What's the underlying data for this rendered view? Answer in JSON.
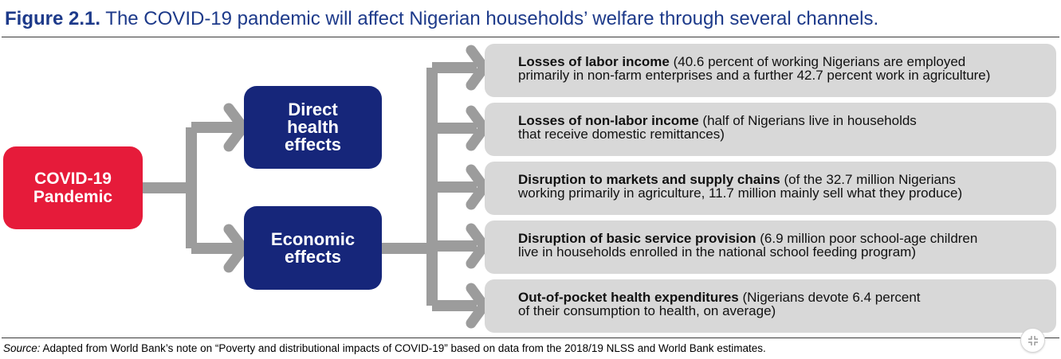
{
  "figure": {
    "number": "Figure 2.1.",
    "title": "The COVID-19 pandemic will affect Nigerian households’ welfare through several channels."
  },
  "diagram": {
    "source_node": "COVID-19\nPandemic",
    "effects": [
      "Direct\nhealth\neffects",
      "Economic\neffects"
    ],
    "channels": [
      {
        "lead": "Losses of labor income",
        "detail": " (40.6 percent of working Nigerians are employed\nprimarily in non-farm enterprises and a further 42.7 percent work in agriculture)"
      },
      {
        "lead": "Losses of non-labor income",
        "detail": " (half of Nigerians live in households\nthat receive domestic remittances)"
      },
      {
        "lead": "Disruption to markets and supply chains",
        "detail": " (of the 32.7 million Nigerians\nworking primarily in agriculture, 11.7 million mainly sell what they produce)"
      },
      {
        "lead": "Disruption of basic service provision",
        "detail": " (6.9 million poor school-age children\nlive in households enrolled in the national school feeding program)"
      },
      {
        "lead": "Out-of-pocket health expenditures",
        "detail": " (Nigerians devote 6.4 percent\nof their consumption to health, on average)"
      }
    ]
  },
  "source": {
    "label": "Source:",
    "text": " Adapted from World Bank’s note on “Poverty and distributional impacts of COVID-19” based on data from the 2018/19 NLSS and World Bank estimates."
  },
  "controls": {
    "collapse_icon": "collapse-icon"
  },
  "colors": {
    "title_blue": "#1d3a8a",
    "covid_red": "#e61b3a",
    "effect_navy": "#16267a",
    "arrow_gray": "#9c9c9c",
    "channel_gray": "#d8d8d8"
  }
}
